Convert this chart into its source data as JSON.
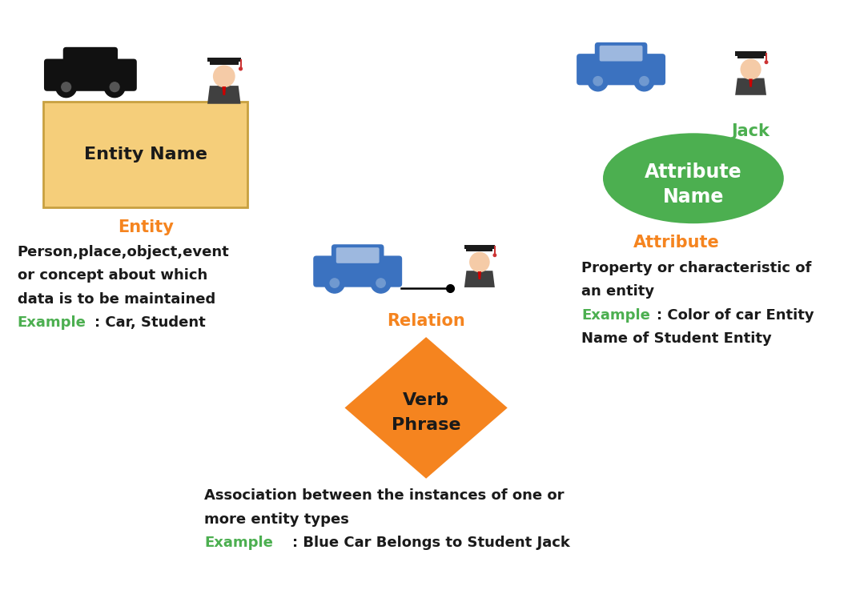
{
  "bg_color": "#ffffff",
  "orange_color": "#F5841F",
  "green_color": "#4CAF50",
  "blue_color": "#3B72C0",
  "black_color": "#1a1a1a",
  "entity_box_color": "#F5CE7A",
  "entity_box_edge": "#C8A040",
  "attr_ellipse_color": "#4CAF50",
  "relation_diamond_color": "#F5841F",
  "entity_label": "Entity Name",
  "attr_label": "Attribute\nName",
  "relation_label": "Verb\nPhrase",
  "jack_label": "Jack",
  "entity_title": "Entity",
  "attr_title": "Attribute",
  "relation_title": "Relation",
  "entity_desc1": "Person,place,object,event",
  "entity_desc2": "or concept about which",
  "entity_desc3": "data is to be maintained",
  "entity_example": "Example",
  "entity_example_val": ": Car, Student",
  "attr_desc1": "Property or characteristic of",
  "attr_desc2": "an entity",
  "attr_example": "Example",
  "attr_example_val1": ": Color of car Entity",
  "attr_desc3": "Name of Student Entity",
  "rel_desc1": "Association between the instances of one or",
  "rel_desc2": "more entity types",
  "rel_example": "Example",
  "rel_example_val": ": Blue Car Belongs to Student Jack"
}
